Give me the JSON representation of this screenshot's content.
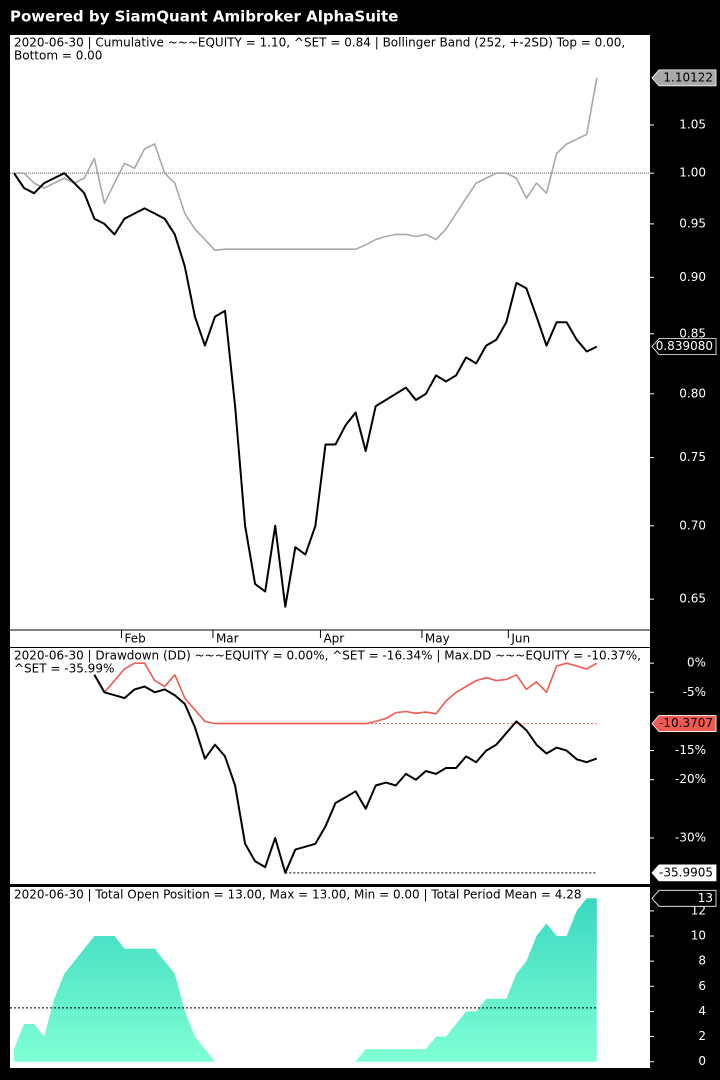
{
  "header": {
    "title": "Powered by SiamQuant Amibroker AlphaSuite"
  },
  "chart_data": [
    {
      "type": "line",
      "log_scale": true,
      "title": [
        "2020-06-30   |   Cumulative ~~~EQUITY = 1.10, ^SET = 0.84   |   Bollinger Band (252, +-2SD)   Top = 0.00,",
        "Bottom = 0.00"
      ],
      "xlim": [
        -0.4,
        63.3
      ],
      "xticks": [
        {
          "value": 10.7,
          "label": "Feb"
        },
        {
          "value": 19.8,
          "label": "Mar"
        },
        {
          "value": 30.5,
          "label": "Apr"
        },
        {
          "value": 40.6,
          "label": "May"
        },
        {
          "value": 49.2,
          "label": "Jun"
        }
      ],
      "ylim": [
        0.63,
        1.15
      ],
      "yticks": [
        1.05,
        {
          "value": 1,
          "label": "1.00"
        },
        0.95,
        {
          "value": 0.9,
          "label": "0.90"
        },
        0.85,
        {
          "value": 0.8,
          "label": "0.80"
        },
        0.75,
        {
          "value": 0.7,
          "label": "0.70"
        },
        0.65
      ],
      "reference_line": 1,
      "series": [
        {
          "color": "#a8a8a8",
          "label_fill": "#a8a8a8",
          "label_text": "#000000",
          "end_label": "1.10122",
          "values": [
            1.0,
            1.0,
            0.99,
            0.985,
            0.99,
            0.995,
            0.99,
            0.995,
            1.015,
            0.97,
            0.99,
            1.01,
            1.005,
            1.025,
            1.03,
            1.0,
            0.99,
            0.96,
            0.945,
            0.935,
            0.925,
            0.926,
            0.926,
            0.926,
            0.926,
            0.926,
            0.926,
            0.926,
            0.926,
            0.926,
            0.926,
            0.926,
            0.926,
            0.926,
            0.926,
            0.93,
            0.935,
            0.938,
            0.94,
            0.94,
            0.938,
            0.94,
            0.935,
            0.945,
            0.96,
            0.975,
            0.99,
            0.995,
            1.0,
            1.0,
            0.995,
            0.975,
            0.99,
            0.98,
            1.02,
            1.03,
            1.035,
            1.04,
            1.10122
          ]
        },
        {
          "color": "#000000",
          "label_fill": "#000000",
          "label_text": "#ffffff",
          "end_label": "0.839080",
          "values": [
            1.0,
            0.985,
            0.98,
            0.99,
            0.995,
            1.0,
            0.99,
            0.98,
            0.955,
            0.95,
            0.94,
            0.955,
            0.96,
            0.965,
            0.96,
            0.955,
            0.94,
            0.91,
            0.865,
            0.84,
            0.865,
            0.87,
            0.79,
            0.7,
            0.66,
            0.655,
            0.7,
            0.645,
            0.685,
            0.68,
            0.7,
            0.76,
            0.76,
            0.775,
            0.785,
            0.755,
            0.79,
            0.795,
            0.8,
            0.805,
            0.795,
            0.8,
            0.815,
            0.81,
            0.815,
            0.83,
            0.825,
            0.84,
            0.845,
            0.86,
            0.895,
            0.89,
            0.865,
            0.84,
            0.86,
            0.86,
            0.845,
            0.835,
            0.83908
          ]
        }
      ]
    },
    {
      "type": "line",
      "title": [
        "2020-06-30   |   Drawdown (DD) ~~~EQUITY = 0.00%, ^SET = -16.34%   |   Max.DD ~~~EQUITY = -10.37%,",
        "^SET = -35.99%"
      ],
      "xlim": [
        -0.4,
        63.3
      ],
      "ylim": [
        -37.9,
        2.6
      ],
      "yticks": [
        {
          "value": 0,
          "label": "0%"
        },
        {
          "value": -5,
          "label": "-5%"
        },
        {
          "value": -15,
          "label": "-15%"
        },
        {
          "value": -20,
          "label": "-20%"
        },
        {
          "value": -30,
          "label": "-30%"
        }
      ],
      "series": [
        {
          "color": "#f05a50",
          "label_fill": "#f05a50",
          "label_text": "#000000",
          "max_dd": -10.3707,
          "values": [
            null,
            null,
            null,
            null,
            null,
            null,
            null,
            null,
            -2,
            -5,
            -3,
            -1,
            0,
            0,
            -3,
            -4,
            -2,
            -6,
            -8,
            -10,
            -10.37,
            -10.37,
            -10.37,
            -10.37,
            -10.37,
            -10.37,
            -10.37,
            -10.37,
            -10.37,
            -10.37,
            -10.37,
            -10.37,
            -10.37,
            -10.37,
            -10.37,
            -10.37,
            -10,
            -9.5,
            -8.5,
            -8.3,
            -8.6,
            -8.4,
            -8.7,
            -6.5,
            -5,
            -4,
            -3,
            -2.5,
            -3,
            -2.8,
            -2,
            -4.5,
            -3.2,
            -5,
            -0.5,
            0,
            -0.5,
            -1,
            0
          ]
        },
        {
          "color": "#000000",
          "label_fill": "#ffffff",
          "label_text": "#000000",
          "max_dd": -35.9905,
          "values": [
            null,
            null,
            null,
            null,
            null,
            null,
            null,
            null,
            -2,
            -5,
            -5.5,
            -6,
            -4.5,
            -4,
            -5,
            -4.5,
            -5.5,
            -7,
            -11,
            -16.4,
            -14,
            -16,
            -21,
            -31,
            -34,
            -35,
            -30,
            -35.99,
            -32,
            -31.5,
            -31,
            -28,
            -24,
            -23,
            -22,
            -25,
            -21,
            -20.5,
            -21,
            -19,
            -20,
            -18.5,
            -19,
            -18,
            -18,
            -16,
            -17,
            -15,
            -14,
            -12,
            -10,
            -11.5,
            -14,
            -15.5,
            -14.5,
            -15,
            -16.5,
            -17,
            -16.34
          ]
        }
      ]
    },
    {
      "type": "area",
      "title": [
        "2020-06-30   |   Total Open Position = 13.00, Max = 13.00, Min = 0.00   |   Total Period Mean = 4.28"
      ],
      "xlim": [
        -0.4,
        63.3
      ],
      "ylim": [
        -0.5,
        13.9
      ],
      "yticks": [
        12,
        10,
        8,
        6,
        4,
        2,
        0
      ],
      "mean": 4.28,
      "series": [
        {
          "color": "#48e0c4",
          "label_fill": "#000000",
          "label_text": "#ffffff",
          "values": [
            1,
            3,
            3,
            2,
            5,
            7,
            8,
            9,
            10,
            10,
            10,
            9,
            9,
            9,
            9,
            8,
            7,
            4,
            2,
            1,
            0,
            0,
            0,
            0,
            0,
            0,
            0,
            0,
            0,
            0,
            0,
            0,
            0,
            0,
            0,
            1,
            1,
            1,
            1,
            1,
            1,
            1,
            2,
            2,
            3,
            4,
            4,
            5,
            5,
            5,
            7,
            8,
            10,
            11,
            10,
            10,
            12,
            13,
            13
          ]
        }
      ]
    }
  ]
}
